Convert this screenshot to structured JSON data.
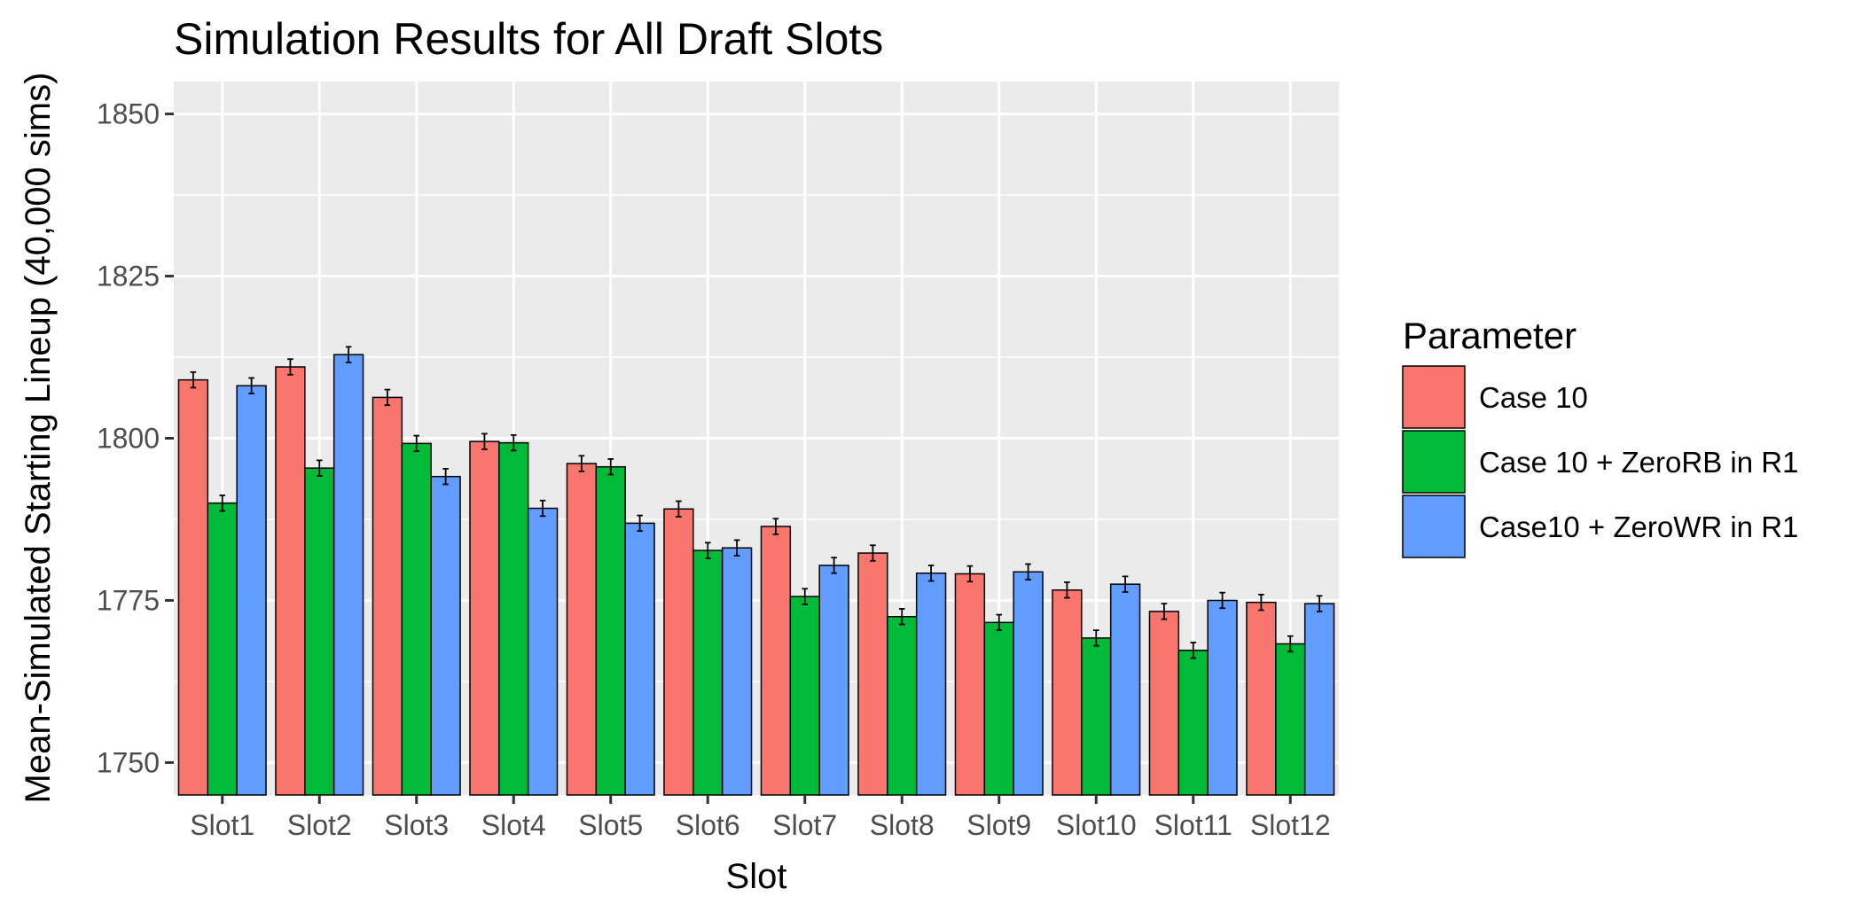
{
  "chart_data": {
    "type": "bar",
    "title": "Simulation Results for All Draft Slots",
    "xlabel": "Slot",
    "ylabel": "Mean-Simulated Starting Lineup (40,000 sims)",
    "ylim": [
      1745,
      1855
    ],
    "yticks": [
      1750,
      1775,
      1800,
      1825,
      1850
    ],
    "grid": true,
    "legend_position": "right",
    "legend_title": "Parameter",
    "categories": [
      "Slot1",
      "Slot2",
      "Slot3",
      "Slot4",
      "Slot5",
      "Slot6",
      "Slot7",
      "Slot8",
      "Slot9",
      "Slot10",
      "Slot11",
      "Slot12"
    ],
    "series": [
      {
        "name": "Case 10",
        "color": "#F8766D",
        "values": [
          1809.0,
          1811.0,
          1806.3,
          1799.5,
          1796.1,
          1789.1,
          1786.4,
          1782.3,
          1779.1,
          1776.6,
          1773.3,
          1774.7
        ],
        "error": 1.2
      },
      {
        "name": "Case 10 + ZeroRB in R1",
        "color": "#00BA38",
        "values": [
          1790.0,
          1795.4,
          1799.2,
          1799.3,
          1795.6,
          1782.7,
          1775.6,
          1772.5,
          1771.6,
          1769.2,
          1767.3,
          1768.3
        ],
        "error": 1.2
      },
      {
        "name": "Case10 + ZeroWR in R1",
        "color": "#619CFF",
        "values": [
          1808.1,
          1812.9,
          1794.1,
          1789.2,
          1786.9,
          1783.1,
          1780.4,
          1779.2,
          1779.4,
          1777.5,
          1775.0,
          1774.5
        ],
        "error": 1.2
      }
    ]
  }
}
